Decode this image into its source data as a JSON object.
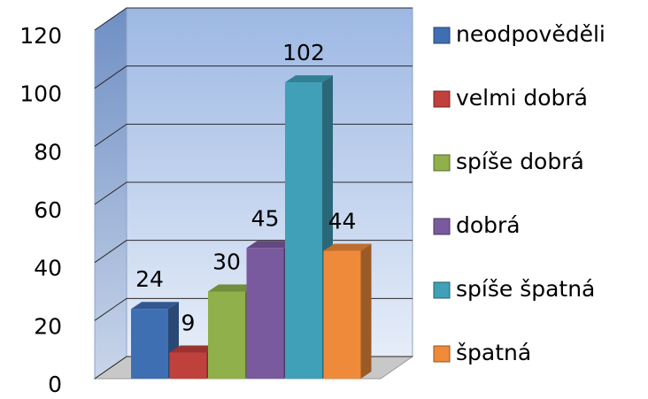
{
  "chart_data": {
    "type": "bar3d",
    "series": [
      {
        "name": "neodpověděli",
        "color": "#3f6fb3",
        "values": [
          24
        ]
      },
      {
        "name": "velmi dobrá",
        "color": "#c0403c",
        "values": [
          9
        ]
      },
      {
        "name": "spíše dobrá",
        "color": "#8fb04a",
        "values": [
          30
        ]
      },
      {
        "name": "dobrá",
        "color": "#7a5a9e",
        "values": [
          45
        ]
      },
      {
        "name": "spíše špatná",
        "color": "#3fa0b8",
        "values": [
          102
        ]
      },
      {
        "name": "špatná",
        "color": "#ef8a3a",
        "values": [
          44
        ]
      }
    ],
    "ylim": [
      0,
      120
    ],
    "yticks": [
      0,
      20,
      40,
      60,
      80,
      100,
      120
    ],
    "grid": true,
    "legend": "right"
  }
}
